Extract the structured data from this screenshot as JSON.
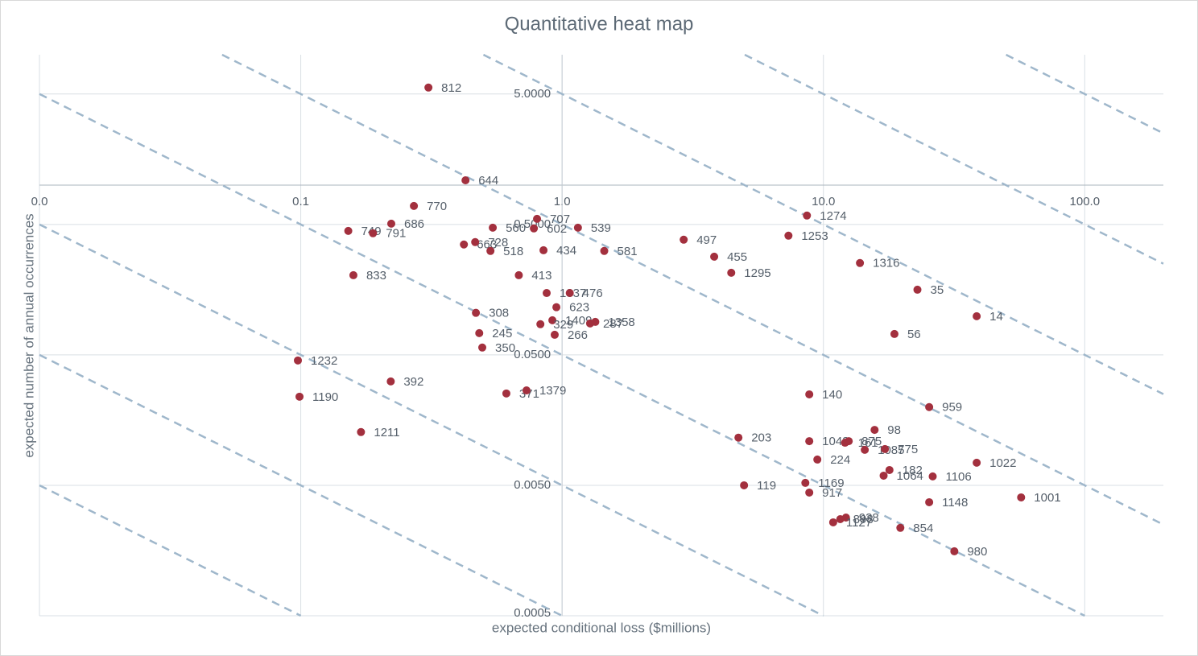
{
  "chart_data": {
    "type": "scatter",
    "title": "Quantitative heat map",
    "x_label": "expected conditional loss ($millions)",
    "y_label": "expected number of annual occurrences",
    "x_log": true,
    "y_log": true,
    "grid": true,
    "x_axis_at": 1,
    "y_axis_at": 1,
    "xlim": [
      0.01,
      200
    ],
    "ylim": [
      0.0005,
      10
    ],
    "xticks": [
      {
        "value": 0.01,
        "label": "0.0"
      },
      0.1,
      {
        "value": 1,
        "label": "1.0"
      },
      {
        "value": 10,
        "label": "10.0"
      },
      {
        "value": 100,
        "label": "100.0"
      }
    ],
    "yticks": [
      {
        "value": 5,
        "label": "5.0000"
      },
      {
        "value": 0.5,
        "label": "0.5000"
      },
      {
        "value": 0.05,
        "label": "0.0500"
      },
      {
        "value": 0.005,
        "label": "0.0050"
      },
      {
        "value": 0.0005,
        "label": "0.0005"
      }
    ],
    "iso_risk_lines": [
      5e-05,
      0.0005,
      0.005,
      0.05,
      0.5,
      5,
      50,
      500
    ],
    "iso_color": "#9fb7cb",
    "series": [
      {
        "color": "#a3303e",
        "point_labels": [
          "812",
          "644",
          "770",
          "686",
          "749",
          "791",
          "560",
          "707",
          "602",
          "539",
          "663",
          "728",
          "518",
          "434",
          "581",
          "497",
          "455",
          "1295",
          "1274",
          "1253",
          "1316",
          "35",
          "14",
          "56",
          "833",
          "413",
          "1337",
          "476",
          "623",
          "308",
          "1409",
          "329",
          "287",
          "1358",
          "245",
          "266",
          "350",
          "1232",
          "392",
          "1190",
          "371",
          "1379",
          "1211",
          "140",
          "959",
          "98",
          "203",
          "1043",
          "875",
          "161",
          "1085",
          "775",
          "224",
          "1022",
          "182",
          "1064",
          "1106",
          "119",
          "1169",
          "917",
          "1001",
          "1148",
          "898",
          "938",
          "1127",
          "854",
          "980"
        ],
        "x": [
          0.308,
          0.427,
          0.271,
          0.222,
          0.152,
          0.189,
          0.543,
          0.802,
          0.78,
          1.15,
          0.421,
          0.465,
          0.532,
          0.849,
          1.45,
          2.92,
          3.82,
          4.44,
          8.65,
          7.35,
          13.8,
          22.9,
          38.6,
          18.7,
          0.159,
          0.683,
          0.873,
          1.07,
          0.951,
          0.468,
          0.918,
          0.826,
          1.28,
          1.34,
          0.482,
          0.937,
          0.495,
          0.0975,
          0.221,
          0.0989,
          0.612,
          0.731,
          0.17,
          8.83,
          25.4,
          15.7,
          4.73,
          8.83,
          12.5,
          12.1,
          14.4,
          17.2,
          9.48,
          38.6,
          17.9,
          17.0,
          26.2,
          4.97,
          8.53,
          8.83,
          57.1,
          25.4,
          11.6,
          12.2,
          10.9,
          19.7,
          31.7
        ],
        "values": [
          5.6,
          1.09,
          0.693,
          0.507,
          0.446,
          0.428,
          0.472,
          0.552,
          0.466,
          0.472,
          0.351,
          0.366,
          0.313,
          0.317,
          0.313,
          0.382,
          0.283,
          0.213,
          0.585,
          0.41,
          0.253,
          0.158,
          0.0989,
          0.0723,
          0.204,
          0.204,
          0.149,
          0.149,
          0.116,
          0.105,
          0.0921,
          0.0859,
          0.0871,
          0.0895,
          0.0734,
          0.0713,
          0.0569,
          0.0453,
          0.0313,
          0.0239,
          0.0253,
          0.0267,
          0.0128,
          0.0249,
          0.0199,
          0.0133,
          0.0116,
          0.0109,
          0.0109,
          0.0106,
          0.00935,
          0.00948,
          0.00788,
          0.00745,
          0.00655,
          0.00593,
          0.00585,
          0.005,
          0.00522,
          0.0044,
          0.00404,
          0.00371,
          0.00275,
          0.00283,
          0.0026,
          0.00236,
          0.00156
        ]
      }
    ]
  }
}
